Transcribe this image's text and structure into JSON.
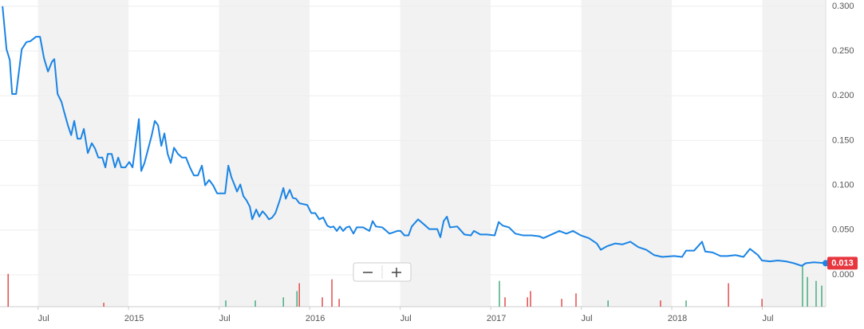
{
  "chart_data": {
    "type": "line",
    "xlim": [
      2014.29,
      2018.85
    ],
    "ylim": [
      -0.0356,
      0.307
    ],
    "xticks": [
      {
        "value": 2014.5,
        "label": "Jul"
      },
      {
        "value": 2015,
        "label": "2015"
      },
      {
        "value": 2015.5,
        "label": "Jul"
      },
      {
        "value": 2016,
        "label": "2016"
      },
      {
        "value": 2016.5,
        "label": "Jul"
      },
      {
        "value": 2017,
        "label": "2017"
      },
      {
        "value": 2017.5,
        "label": "Jul"
      },
      {
        "value": 2018,
        "label": "2018"
      },
      {
        "value": 2018.5,
        "label": "Jul"
      }
    ],
    "yticks": [
      {
        "value": 0,
        "label": "0.000"
      },
      {
        "value": 0.05,
        "label": "0.050"
      },
      {
        "value": 0.1,
        "label": "0.100"
      },
      {
        "value": 0.15,
        "label": "0.150"
      },
      {
        "value": 0.2,
        "label": "0.200"
      },
      {
        "value": 0.25,
        "label": "0.250"
      },
      {
        "value": 0.3,
        "label": "0.300"
      }
    ],
    "grid": true,
    "series": [
      {
        "color": "#1a84e4",
        "x": [
          2014.304,
          2014.326,
          2014.344,
          2014.357,
          2014.379,
          2014.41,
          2014.436,
          2014.458,
          2014.489,
          2014.511,
          2014.533,
          2014.555,
          2014.577,
          2014.59,
          2014.608,
          2014.63,
          2014.643,
          2014.665,
          2014.683,
          2014.7,
          2014.718,
          2014.736,
          2014.753,
          2014.775,
          2014.797,
          2014.815,
          2014.833,
          2014.855,
          2014.872,
          2014.885,
          2014.907,
          2014.925,
          2014.943,
          2014.96,
          2014.982,
          2015.004,
          2015.022,
          2015.04,
          2015.057,
          2015.07,
          2015.088,
          2015.11,
          2015.128,
          2015.145,
          2015.163,
          2015.181,
          2015.198,
          2015.216,
          2015.233,
          2015.251,
          2015.273,
          2015.295,
          2015.317,
          2015.339,
          2015.361,
          2015.383,
          2015.405,
          2015.423,
          2015.445,
          2015.467,
          2015.489,
          2015.533,
          2015.551,
          2015.568,
          2015.586,
          2015.599,
          2015.617,
          2015.634,
          2015.652,
          2015.67,
          2015.683,
          2015.705,
          2015.722,
          2015.74,
          2015.758,
          2015.775,
          2015.793,
          2015.811,
          2015.833,
          2015.855,
          2015.868,
          2015.89,
          2015.907,
          2015.925,
          2015.943,
          2015.987,
          2016.009,
          2016.031,
          2016.053,
          2016.075,
          2016.097,
          2016.115,
          2016.132,
          2016.15,
          2016.167,
          2016.185,
          2016.203,
          2016.22,
          2016.242,
          2016.26,
          2016.295,
          2016.33,
          2016.348,
          2016.366,
          2016.401,
          2016.441,
          2016.485,
          2016.502,
          2016.524,
          2016.546,
          2016.564,
          2016.599,
          2016.639,
          2016.661,
          2016.705,
          2016.722,
          2016.74,
          2016.758,
          2016.775,
          2016.815,
          2016.855,
          2016.89,
          2016.907,
          2016.943,
          2016.978,
          2017.022,
          2017.044,
          2017.066,
          2017.101,
          2017.136,
          2017.181,
          2017.225,
          2017.269,
          2017.291,
          2017.335,
          2017.379,
          2017.418,
          2017.454,
          2017.498,
          2017.542,
          2017.586,
          2017.608,
          2017.643,
          2017.687,
          2017.727,
          2017.771,
          2017.815,
          2017.859,
          2017.903,
          2017.947,
          2018.013,
          2018.057,
          2018.079,
          2018.123,
          2018.167,
          2018.185,
          2018.225,
          2018.269,
          2018.308,
          2018.352,
          2018.396,
          2018.432,
          2018.476,
          2018.498,
          2018.542,
          2018.586,
          2018.63,
          2018.674,
          2018.718,
          2018.74,
          2018.784,
          2018.85
        ],
        "values": [
          0.3,
          0.252,
          0.24,
          0.202,
          0.202,
          0.252,
          0.26,
          0.261,
          0.266,
          0.266,
          0.242,
          0.227,
          0.238,
          0.241,
          0.202,
          0.193,
          0.183,
          0.167,
          0.156,
          0.172,
          0.152,
          0.152,
          0.163,
          0.136,
          0.147,
          0.141,
          0.131,
          0.131,
          0.12,
          0.135,
          0.135,
          0.12,
          0.131,
          0.12,
          0.12,
          0.126,
          0.12,
          0.147,
          0.174,
          0.116,
          0.125,
          0.142,
          0.156,
          0.172,
          0.167,
          0.144,
          0.158,
          0.135,
          0.125,
          0.142,
          0.135,
          0.131,
          0.131,
          0.12,
          0.111,
          0.111,
          0.122,
          0.1,
          0.106,
          0.1,
          0.091,
          0.091,
          0.122,
          0.109,
          0.1,
          0.093,
          0.101,
          0.088,
          0.083,
          0.076,
          0.062,
          0.073,
          0.065,
          0.071,
          0.067,
          0.062,
          0.064,
          0.069,
          0.082,
          0.097,
          0.085,
          0.095,
          0.086,
          0.085,
          0.08,
          0.078,
          0.069,
          0.069,
          0.062,
          0.064,
          0.055,
          0.053,
          0.054,
          0.049,
          0.054,
          0.049,
          0.053,
          0.054,
          0.046,
          0.053,
          0.053,
          0.049,
          0.06,
          0.054,
          0.053,
          0.046,
          0.049,
          0.049,
          0.044,
          0.044,
          0.054,
          0.062,
          0.055,
          0.051,
          0.051,
          0.042,
          0.06,
          0.065,
          0.053,
          0.054,
          0.045,
          0.044,
          0.049,
          0.045,
          0.045,
          0.044,
          0.059,
          0.055,
          0.053,
          0.046,
          0.044,
          0.044,
          0.043,
          0.041,
          0.045,
          0.049,
          0.046,
          0.049,
          0.044,
          0.041,
          0.035,
          0.028,
          0.032,
          0.035,
          0.034,
          0.037,
          0.031,
          0.028,
          0.022,
          0.02,
          0.021,
          0.02,
          0.027,
          0.027,
          0.037,
          0.026,
          0.025,
          0.021,
          0.021,
          0.022,
          0.02,
          0.029,
          0.022,
          0.016,
          0.015,
          0.016,
          0.015,
          0.013,
          0.01,
          0.013,
          0.014,
          0.013
        ]
      }
    ],
    "last_value_label": "0.013",
    "volume": {
      "x": [
        2014.335,
        2014.863,
        2015.537,
        2015.7,
        2015.855,
        2015.93,
        2015.943,
        2016.07,
        2016.123,
        2016.163,
        2017.048,
        2017.079,
        2017.203,
        2017.22,
        2017.392,
        2017.471,
        2017.648,
        2017.938,
        2018.079,
        2018.313,
        2018.498,
        2018.722,
        2018.749,
        2018.797,
        2018.828
      ],
      "values": [
        42,
        5,
        8,
        8,
        12,
        20,
        30,
        12,
        35,
        10,
        33,
        12,
        12,
        20,
        10,
        17,
        8,
        8,
        8,
        30,
        10,
        53,
        38,
        33,
        27
      ],
      "colors": [
        "#e04040",
        "#e04040",
        "#3aa876",
        "#3aa876",
        "#3aa876",
        "#3aa876",
        "#e04040",
        "#e04040",
        "#e04040",
        "#e04040",
        "#3aa876",
        "#e04040",
        "#e04040",
        "#e04040",
        "#e04040",
        "#e04040",
        "#3aa876",
        "#e04040",
        "#3aa876",
        "#e04040",
        "#e04040",
        "#3aa876",
        "#3aa876",
        "#3aa876",
        "#3aa876"
      ]
    }
  }
}
